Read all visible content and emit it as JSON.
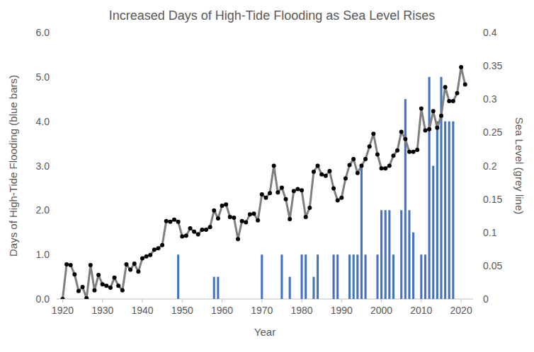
{
  "chart_data": {
    "type": "bar",
    "title": "Increased Days of High-Tide Flooding as Sea Level Rises",
    "x_label": "Year",
    "y_label": "Days of High-Tide Flooding (blue bars)",
    "y2_label": "Sea Level (grey line)",
    "xlim": [
      1918.5,
      2023
    ],
    "xticks": [
      1920,
      1930,
      1940,
      1950,
      1960,
      1970,
      1980,
      1990,
      2000,
      2010,
      2020
    ],
    "ylim": [
      0,
      6
    ],
    "yticks": [
      {
        "value": 0,
        "label": "0.0"
      },
      {
        "value": 1,
        "label": "1.0"
      },
      {
        "value": 2,
        "label": "2.0"
      },
      {
        "value": 3,
        "label": "3.0"
      },
      {
        "value": 4,
        "label": "4.0"
      },
      {
        "value": 5,
        "label": "5.0"
      },
      {
        "value": 6,
        "label": "6.0"
      }
    ],
    "y2lim": [
      0,
      0.4
    ],
    "y2ticks": [
      0,
      0.05,
      0.1,
      0.15,
      0.2,
      0.25,
      0.3,
      0.35,
      0.4
    ],
    "grid": false,
    "series": [
      {
        "type": "bar",
        "color": "#4472c4",
        "x": [
          1949,
          1958,
          1959,
          1970,
          1975,
          1977,
          1980,
          1981,
          1983,
          1984,
          1988,
          1989,
          1992,
          1993,
          1994,
          1995,
          1996,
          1999,
          2000,
          2001,
          2002,
          2003,
          2005,
          2006,
          2007,
          2008,
          2010,
          2011,
          2012,
          2013,
          2014,
          2015,
          2016,
          2017,
          2018
        ],
        "values": [
          1,
          0.5,
          0.5,
          1,
          1,
          0.5,
          1,
          1,
          0.5,
          1,
          1,
          1,
          1,
          1,
          1,
          3,
          1,
          1,
          2,
          2,
          2,
          1,
          2,
          4.5,
          2,
          1.5,
          1,
          1,
          5,
          3,
          4,
          5,
          4,
          4,
          4
        ]
      },
      {
        "type": "line",
        "axis": "y2",
        "color": "#7f7f7f",
        "marker": "circle",
        "line_style": "solid",
        "x": [
          1920,
          1921,
          1922,
          1923,
          1924,
          1925,
          1926,
          1927,
          1928,
          1929,
          1930,
          1931,
          1932,
          1933,
          1934,
          1935,
          1936,
          1937,
          1938,
          1939,
          1940,
          1941,
          1942,
          1943,
          1944,
          1945,
          1946,
          1947,
          1948,
          1949,
          1950,
          1951,
          1952,
          1953,
          1954,
          1955,
          1956,
          1957,
          1958,
          1959,
          1960,
          1961,
          1962,
          1963,
          1964,
          1965,
          1966,
          1967,
          1968,
          1969,
          1970,
          1971,
          1972,
          1973,
          1974,
          1975,
          1976,
          1977,
          1978,
          1979,
          1980,
          1981,
          1982,
          1983,
          1984,
          1985,
          1986,
          1987,
          1988,
          1989,
          1990,
          1991,
          1992,
          1993,
          1994,
          1995,
          1996,
          1997,
          1998,
          1999,
          2000,
          2001,
          2002,
          2003,
          2004,
          2005,
          2006,
          2007,
          2008,
          2009,
          2010,
          2011,
          2012,
          2013,
          2014,
          2015,
          2016,
          2017,
          2018,
          2019,
          2020,
          2021
        ],
        "values": [
          0.0,
          0.052,
          0.051,
          0.037,
          0.012,
          0.018,
          0.001,
          0.051,
          0.013,
          0.036,
          0.022,
          0.02,
          0.017,
          0.032,
          0.02,
          0.013,
          0.052,
          0.044,
          0.053,
          0.041,
          0.061,
          0.064,
          0.066,
          0.074,
          0.076,
          0.081,
          0.117,
          0.116,
          0.119,
          0.116,
          0.094,
          0.095,
          0.106,
          0.101,
          0.097,
          0.104,
          0.104,
          0.108,
          0.133,
          0.121,
          0.14,
          0.142,
          0.123,
          0.122,
          0.09,
          0.117,
          0.115,
          0.127,
          0.128,
          0.118,
          0.157,
          0.152,
          0.159,
          0.2,
          0.16,
          0.167,
          0.15,
          0.12,
          0.162,
          0.165,
          0.163,
          0.123,
          0.137,
          0.191,
          0.2,
          0.187,
          0.185,
          0.192,
          0.166,
          0.148,
          0.152,
          0.181,
          0.201,
          0.21,
          0.189,
          0.2,
          0.21,
          0.229,
          0.248,
          0.217,
          0.196,
          0.196,
          0.2,
          0.215,
          0.223,
          0.251,
          0.24,
          0.221,
          0.221,
          0.224,
          0.286,
          0.253,
          0.255,
          0.282,
          0.257,
          0.275,
          0.318,
          0.297,
          0.297,
          0.309,
          0.348,
          0.322
        ]
      }
    ]
  }
}
